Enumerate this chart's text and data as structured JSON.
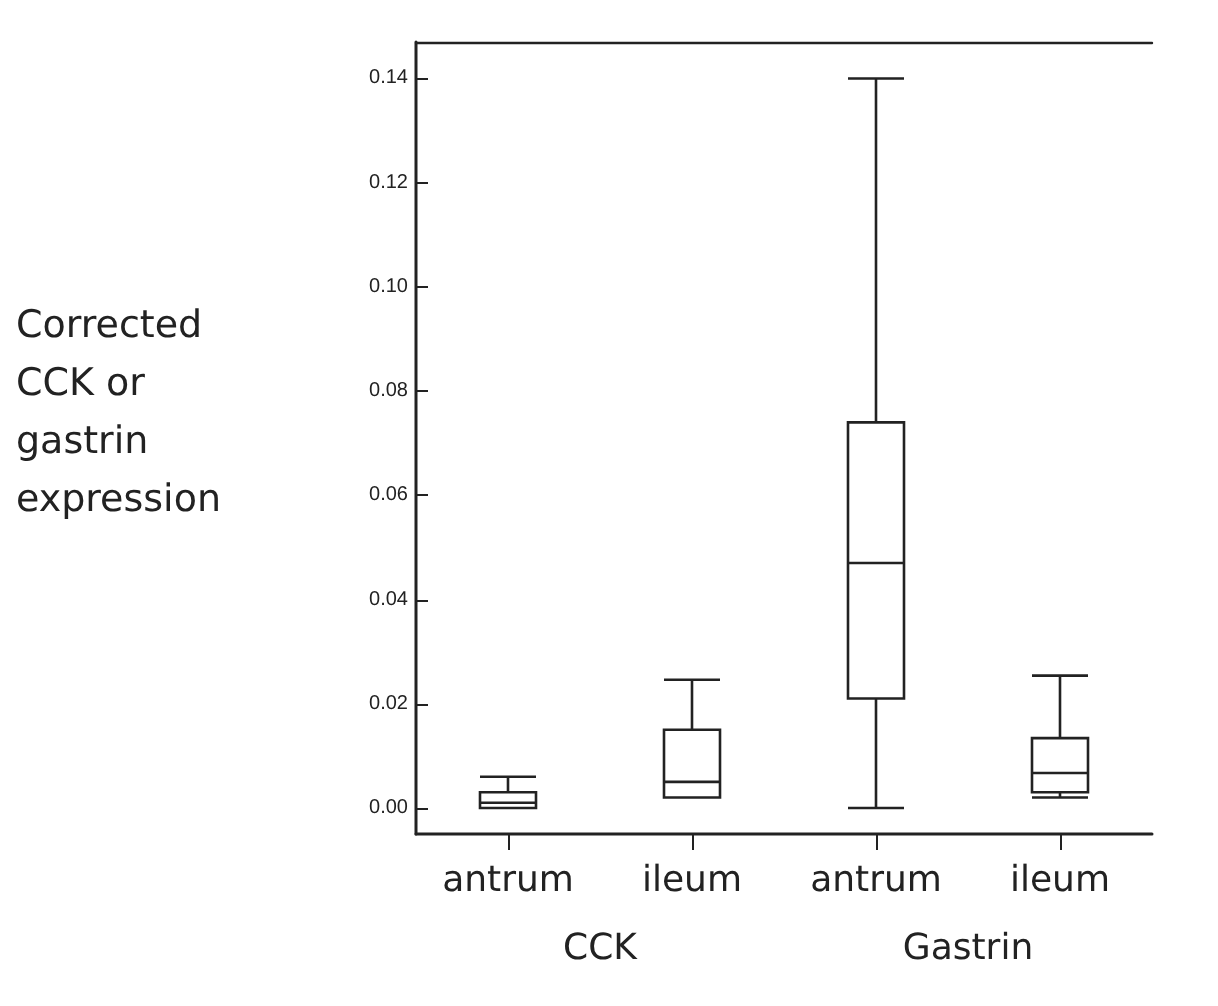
{
  "chart_data": {
    "type": "box",
    "ylabel": "Corrected CCK or gastrin expression",
    "categories": [
      "antrum",
      "ileum",
      "antrum",
      "ileum"
    ],
    "boxes": [
      {
        "low": 0.0,
        "q1": 0.0,
        "median": 0.001,
        "q3": 0.003,
        "high": 0.006
      },
      {
        "low": 0.002,
        "q1": 0.002,
        "median": 0.005,
        "q3": 0.015,
        "high": 0.0246
      },
      {
        "low": 0.0,
        "q1": 0.021,
        "median": 0.047,
        "q3": 0.074,
        "high": 0.14
      },
      {
        "low": 0.002,
        "q1": 0.003,
        "median": 0.0067,
        "q3": 0.0134,
        "high": 0.0254
      }
    ],
    "annotations": [
      "CCK",
      "Gastrin"
    ],
    "ylim": [
      -0.005,
      0.147
    ],
    "yticks": [
      {
        "value": 0,
        "label": "0.00"
      },
      {
        "value": 0.02,
        "label": "0.02"
      },
      {
        "value": 0.04,
        "label": "0.04"
      },
      {
        "value": 0.06,
        "label": "0.06"
      },
      {
        "value": 0.08,
        "label": "0.08"
      },
      {
        "value": 0.1,
        "label": "0.10"
      },
      {
        "value": 0.12,
        "label": "0.12"
      },
      {
        "value": 0.14,
        "label": "0.14"
      }
    ],
    "grid": false
  }
}
